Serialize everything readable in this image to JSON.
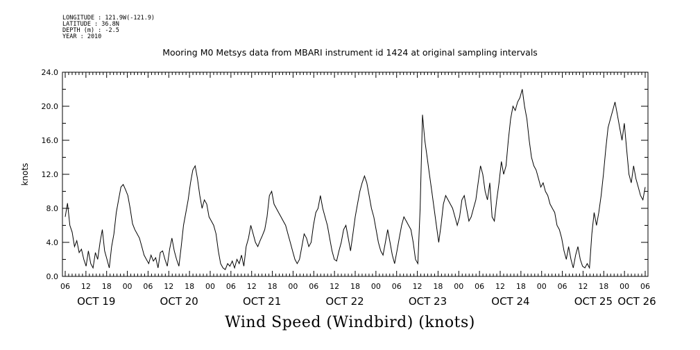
{
  "header": {
    "longitude": "LONGITUDE : 121.9W(-121.9)",
    "latitude": "LATITUDE : 36.8N",
    "depth": "DEPTH (m) : -2.5",
    "year": "YEAR : 2010",
    "title": "Mooring M0 Metsys data from MBARI instrument id 1424 at original sampling intervals"
  },
  "chart_data": {
    "type": "line",
    "title": "Mooring M0 Metsys data from MBARI instrument id 1424 at original sampling intervals",
    "xlabel": "Wind Speed (Windbird) (knots)",
    "ylabel": "knots",
    "ylim": [
      0,
      24
    ],
    "y_ticks": [
      "0.0",
      "4.0",
      "8.0",
      "12.0",
      "16.0",
      "20.0",
      "24.0"
    ],
    "x_tick_labels": [
      "06",
      "12",
      "18",
      "00",
      "06",
      "12",
      "18",
      "00",
      "06",
      "12",
      "18",
      "00",
      "06",
      "12",
      "18",
      "00",
      "06",
      "12",
      "18",
      "00",
      "06",
      "12",
      "18",
      "00",
      "06",
      "12",
      "18",
      "00",
      "06"
    ],
    "day_labels": [
      "OCT 19",
      "OCT 20",
      "OCT 21",
      "OCT 22",
      "OCT 23",
      "OCT 24",
      "OCT 25",
      "OCT 26"
    ],
    "x_unit": "hours since 2010-10-19 06:00",
    "series": [
      {
        "values": [
          [
            0,
            7.0
          ],
          [
            1,
            8.6
          ],
          [
            2,
            6.0
          ],
          [
            3,
            5.2
          ],
          [
            4,
            3.5
          ],
          [
            5,
            4.2
          ],
          [
            6,
            2.8
          ],
          [
            7,
            3.2
          ],
          [
            8,
            2.0
          ],
          [
            9,
            1.2
          ],
          [
            10,
            3.0
          ],
          [
            11,
            1.5
          ],
          [
            12,
            1.0
          ],
          [
            13,
            2.8
          ],
          [
            14,
            2.0
          ],
          [
            15,
            4.0
          ],
          [
            16,
            5.5
          ],
          [
            17,
            3.0
          ],
          [
            18,
            2.0
          ],
          [
            19,
            1.0
          ],
          [
            20,
            3.5
          ],
          [
            21,
            5.0
          ],
          [
            22,
            7.5
          ],
          [
            23,
            9.0
          ],
          [
            24,
            10.5
          ],
          [
            25,
            10.8
          ],
          [
            26,
            10.2
          ],
          [
            27,
            9.5
          ],
          [
            28,
            8.0
          ],
          [
            29,
            6.2
          ],
          [
            30,
            5.5
          ],
          [
            31,
            5.0
          ],
          [
            32,
            4.5
          ],
          [
            33,
            3.5
          ],
          [
            34,
            2.5
          ],
          [
            35,
            2.0
          ],
          [
            36,
            1.5
          ],
          [
            37,
            2.5
          ],
          [
            38,
            1.8
          ],
          [
            39,
            2.2
          ],
          [
            40,
            1.0
          ],
          [
            41,
            2.8
          ],
          [
            42,
            3.0
          ],
          [
            43,
            2.0
          ],
          [
            44,
            1.2
          ],
          [
            45,
            3.2
          ],
          [
            46,
            4.5
          ],
          [
            47,
            3.0
          ],
          [
            48,
            2.0
          ],
          [
            49,
            1.2
          ],
          [
            50,
            3.5
          ],
          [
            51,
            6.0
          ],
          [
            52,
            7.5
          ],
          [
            53,
            9.0
          ],
          [
            54,
            11.0
          ],
          [
            55,
            12.5
          ],
          [
            56,
            13.0
          ],
          [
            57,
            11.5
          ],
          [
            58,
            9.5
          ],
          [
            59,
            8.0
          ],
          [
            60,
            9.0
          ],
          [
            61,
            8.5
          ],
          [
            62,
            7.0
          ],
          [
            63,
            6.5
          ],
          [
            64,
            6.0
          ],
          [
            65,
            5.0
          ],
          [
            66,
            3.0
          ],
          [
            67,
            1.5
          ],
          [
            68,
            1.0
          ],
          [
            69,
            0.8
          ],
          [
            70,
            1.5
          ],
          [
            71,
            1.2
          ],
          [
            72,
            1.8
          ],
          [
            73,
            1.0
          ],
          [
            74,
            2.0
          ],
          [
            75,
            1.5
          ],
          [
            76,
            2.5
          ],
          [
            77,
            1.2
          ],
          [
            78,
            3.5
          ],
          [
            79,
            4.5
          ],
          [
            80,
            6.0
          ],
          [
            81,
            5.0
          ],
          [
            82,
            4.0
          ],
          [
            83,
            3.5
          ],
          [
            84,
            4.2
          ],
          [
            85,
            4.8
          ],
          [
            86,
            5.5
          ],
          [
            87,
            7.0
          ],
          [
            88,
            9.5
          ],
          [
            89,
            10.0
          ],
          [
            90,
            8.5
          ],
          [
            91,
            8.0
          ],
          [
            92,
            7.5
          ],
          [
            93,
            7.0
          ],
          [
            94,
            6.5
          ],
          [
            95,
            6.0
          ],
          [
            96,
            5.0
          ],
          [
            97,
            4.0
          ],
          [
            98,
            3.0
          ],
          [
            99,
            2.0
          ],
          [
            100,
            1.5
          ],
          [
            101,
            2.0
          ],
          [
            102,
            3.5
          ],
          [
            103,
            5.0
          ],
          [
            104,
            4.5
          ],
          [
            105,
            3.5
          ],
          [
            106,
            4.0
          ],
          [
            107,
            6.0
          ],
          [
            108,
            7.5
          ],
          [
            109,
            8.0
          ],
          [
            110,
            9.5
          ],
          [
            111,
            8.0
          ],
          [
            112,
            7.0
          ],
          [
            113,
            6.0
          ],
          [
            114,
            4.5
          ],
          [
            115,
            3.0
          ],
          [
            116,
            2.0
          ],
          [
            117,
            1.8
          ],
          [
            118,
            3.0
          ],
          [
            119,
            4.0
          ],
          [
            120,
            5.5
          ],
          [
            121,
            6.0
          ],
          [
            122,
            4.5
          ],
          [
            123,
            3.0
          ],
          [
            124,
            5.0
          ],
          [
            125,
            7.0
          ],
          [
            126,
            8.5
          ],
          [
            127,
            10.0
          ],
          [
            128,
            11.0
          ],
          [
            129,
            11.8
          ],
          [
            130,
            11.0
          ],
          [
            131,
            9.5
          ],
          [
            132,
            8.0
          ],
          [
            133,
            7.0
          ],
          [
            134,
            5.5
          ],
          [
            135,
            4.0
          ],
          [
            136,
            3.0
          ],
          [
            137,
            2.5
          ],
          [
            138,
            4.0
          ],
          [
            139,
            5.5
          ],
          [
            140,
            4.0
          ],
          [
            141,
            2.5
          ],
          [
            142,
            1.5
          ],
          [
            143,
            3.0
          ],
          [
            144,
            4.5
          ],
          [
            145,
            6.0
          ],
          [
            146,
            7.0
          ],
          [
            147,
            6.5
          ],
          [
            148,
            6.0
          ],
          [
            149,
            5.5
          ],
          [
            150,
            4.0
          ],
          [
            151,
            2.0
          ],
          [
            152,
            1.5
          ],
          [
            153,
            8.0
          ],
          [
            154,
            19.0
          ],
          [
            155,
            16.0
          ],
          [
            156,
            14.0
          ],
          [
            157,
            12.0
          ],
          [
            158,
            10.0
          ],
          [
            159,
            8.0
          ],
          [
            160,
            6.0
          ],
          [
            161,
            4.0
          ],
          [
            162,
            6.0
          ],
          [
            163,
            8.5
          ],
          [
            164,
            9.5
          ],
          [
            165,
            9.0
          ],
          [
            166,
            8.5
          ],
          [
            167,
            8.0
          ],
          [
            168,
            7.0
          ],
          [
            169,
            6.0
          ],
          [
            170,
            7.0
          ],
          [
            171,
            9.0
          ],
          [
            172,
            9.5
          ],
          [
            173,
            8.0
          ],
          [
            174,
            6.5
          ],
          [
            175,
            7.0
          ],
          [
            176,
            8.0
          ],
          [
            177,
            9.0
          ],
          [
            178,
            11.0
          ],
          [
            179,
            13.0
          ],
          [
            180,
            12.0
          ],
          [
            181,
            10.0
          ],
          [
            182,
            9.0
          ],
          [
            183,
            11.0
          ],
          [
            184,
            7.0
          ],
          [
            185,
            6.5
          ],
          [
            186,
            9.0
          ],
          [
            187,
            11.0
          ],
          [
            188,
            13.5
          ],
          [
            189,
            12.0
          ],
          [
            190,
            13.0
          ],
          [
            191,
            16.0
          ],
          [
            192,
            18.5
          ],
          [
            193,
            20.0
          ],
          [
            194,
            19.5
          ],
          [
            195,
            20.5
          ],
          [
            196,
            21.0
          ],
          [
            197,
            22.0
          ],
          [
            198,
            20.0
          ],
          [
            199,
            18.5
          ],
          [
            200,
            16.0
          ],
          [
            201,
            14.0
          ],
          [
            202,
            13.0
          ],
          [
            203,
            12.5
          ],
          [
            204,
            11.5
          ],
          [
            205,
            10.5
          ],
          [
            206,
            11.0
          ],
          [
            207,
            10.0
          ],
          [
            208,
            9.5
          ],
          [
            209,
            8.5
          ],
          [
            210,
            8.0
          ],
          [
            211,
            7.5
          ],
          [
            212,
            6.0
          ],
          [
            213,
            5.5
          ],
          [
            214,
            4.5
          ],
          [
            215,
            3.0
          ],
          [
            216,
            2.0
          ],
          [
            217,
            3.5
          ],
          [
            218,
            2.0
          ],
          [
            219,
            1.0
          ],
          [
            220,
            2.5
          ],
          [
            221,
            3.5
          ],
          [
            222,
            2.0
          ],
          [
            223,
            1.2
          ],
          [
            224,
            1.0
          ],
          [
            225,
            1.5
          ],
          [
            226,
            1.0
          ],
          [
            227,
            5.0
          ],
          [
            228,
            7.5
          ],
          [
            229,
            6.0
          ],
          [
            230,
            7.5
          ],
          [
            231,
            9.5
          ],
          [
            232,
            12.0
          ],
          [
            233,
            15.0
          ],
          [
            234,
            17.5
          ],
          [
            235,
            18.5
          ],
          [
            236,
            19.5
          ],
          [
            237,
            20.5
          ],
          [
            238,
            19.0
          ],
          [
            239,
            17.5
          ],
          [
            240,
            16.0
          ],
          [
            241,
            18.0
          ],
          [
            242,
            15.0
          ],
          [
            243,
            12.0
          ],
          [
            244,
            11.0
          ],
          [
            245,
            13.0
          ],
          [
            246,
            11.5
          ],
          [
            247,
            10.5
          ],
          [
            248,
            9.5
          ],
          [
            249,
            9.0
          ],
          [
            250,
            10.5
          ]
        ]
      }
    ]
  }
}
